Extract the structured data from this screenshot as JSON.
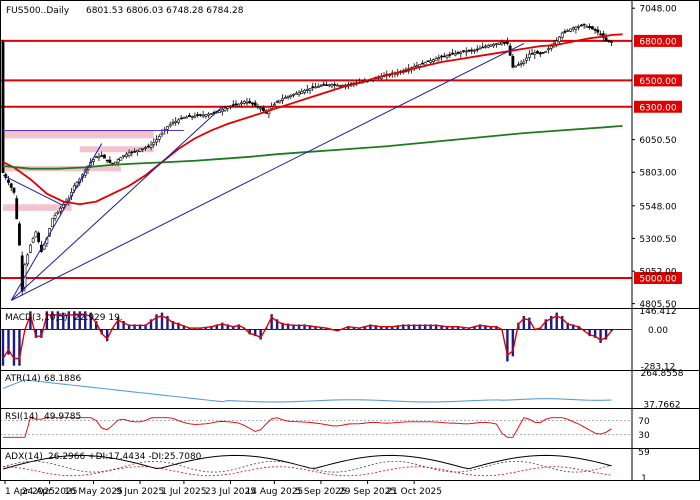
{
  "chart_data": {
    "type": "candlestick",
    "symbol": "FUS500",
    "timeframe": "Daily",
    "header": {
      "title": "FUS500..Daily",
      "ohlc": "6801.53 6806.03 6748.28 6784.28"
    },
    "price_axis": {
      "range": [
        4780,
        7080
      ],
      "ticks": [
        "7048.00",
        "6800.00",
        "6500.00",
        "6300.00",
        "6050.50",
        "5803.00",
        "5548.00",
        "5300.50",
        "5052.00",
        "5000.00",
        "4805.50"
      ]
    },
    "date_axis": {
      "ticks": [
        "1 Apr 2025",
        "24 Apr 2025",
        "16 May 2025",
        "9 Jun 2025",
        "1 Jul 2025",
        "23 Jul 2025",
        "14 Aug 2025",
        "5 Sep 2025",
        "29 Sep 2025",
        "21 Oct 2025"
      ]
    },
    "horizontal_levels": [
      {
        "value": 6800,
        "label": "6800.00",
        "color": "#e00000"
      },
      {
        "value": 6500,
        "label": "6500.00",
        "color": "#e00000"
      },
      {
        "value": 6300,
        "label": "6300.00",
        "color": "#e00000"
      },
      {
        "value": 5000,
        "label": "5000.00",
        "color": "#e00000"
      }
    ],
    "zones": [
      {
        "from_day": 0,
        "to_day": 55,
        "low": 6060,
        "high": 6120,
        "color": "#f2b8c6"
      },
      {
        "from_day": 0,
        "to_day": 43,
        "low": 5810,
        "high": 5850,
        "color": "#f2b8c6"
      },
      {
        "from_day": 0,
        "to_day": 25,
        "low": 5510,
        "high": 5560,
        "color": "#f2b8c6"
      },
      {
        "from_day": 28,
        "to_day": 55,
        "low": 5955,
        "high": 6000,
        "color": "#f2b8c6"
      }
    ],
    "trendlines": [
      {
        "from": [
          3,
          4830
        ],
        "to": [
          190,
          6780
        ],
        "color": "#1a1aaa"
      },
      {
        "from": [
          3,
          4830
        ],
        "to": [
          80,
          6300
        ],
        "color": "#1a1aaa"
      },
      {
        "from": [
          3,
          4830
        ],
        "to": [
          36,
          6020
        ],
        "color": "#1a1aaa"
      },
      {
        "from": [
          0,
          5780
        ],
        "to": [
          22,
          5550
        ],
        "color": "#1a1aaa"
      },
      {
        "from": [
          0,
          6120
        ],
        "to": [
          66,
          6120
        ],
        "color": "#5533cc"
      }
    ],
    "moving_averages": [
      {
        "period": 20,
        "color": "#e00000",
        "points": [
          [
            0,
            5880
          ],
          [
            4,
            5840
          ],
          [
            10,
            5750
          ],
          [
            16,
            5640
          ],
          [
            22,
            5580
          ],
          [
            28,
            5560
          ],
          [
            34,
            5580
          ],
          [
            40,
            5640
          ],
          [
            46,
            5700
          ],
          [
            52,
            5780
          ],
          [
            58,
            5880
          ],
          [
            64,
            5980
          ],
          [
            70,
            6060
          ],
          [
            76,
            6120
          ],
          [
            82,
            6170
          ],
          [
            88,
            6210
          ],
          [
            94,
            6250
          ],
          [
            100,
            6290
          ],
          [
            106,
            6330
          ],
          [
            112,
            6370
          ],
          [
            118,
            6410
          ],
          [
            124,
            6450
          ],
          [
            130,
            6480
          ],
          [
            136,
            6520
          ],
          [
            142,
            6550
          ],
          [
            148,
            6580
          ],
          [
            154,
            6610
          ],
          [
            160,
            6640
          ],
          [
            166,
            6660
          ],
          [
            172,
            6680
          ],
          [
            178,
            6700
          ],
          [
            184,
            6720
          ],
          [
            190,
            6740
          ],
          [
            196,
            6760
          ],
          [
            202,
            6770
          ],
          [
            208,
            6795
          ],
          [
            214,
            6820
          ],
          [
            218,
            6830
          ],
          [
            222,
            6845
          ],
          [
            226,
            6850
          ]
        ]
      },
      {
        "period": 100,
        "color": "#1e7a1e",
        "points": [
          [
            0,
            5850
          ],
          [
            10,
            5830
          ],
          [
            20,
            5830
          ],
          [
            30,
            5840
          ],
          [
            40,
            5860
          ],
          [
            50,
            5870
          ],
          [
            60,
            5880
          ],
          [
            70,
            5890
          ],
          [
            80,
            5905
          ],
          [
            90,
            5920
          ],
          [
            100,
            5940
          ],
          [
            110,
            5955
          ],
          [
            120,
            5970
          ],
          [
            130,
            5985
          ],
          [
            140,
            6000
          ],
          [
            150,
            6020
          ],
          [
            160,
            6040
          ],
          [
            170,
            6060
          ],
          [
            180,
            6080
          ],
          [
            190,
            6100
          ],
          [
            200,
            6115
          ],
          [
            210,
            6130
          ],
          [
            220,
            6145
          ],
          [
            226,
            6155
          ]
        ]
      }
    ],
    "indicators": [
      {
        "name": "MACD",
        "label": "MACD(3,10,5)",
        "values": "22.929 19.",
        "scale_labels": [
          "146.412",
          "0.00",
          "-283.12"
        ],
        "range": [
          -290,
          150
        ]
      },
      {
        "name": "ATR",
        "label": "ATR(14)",
        "values": "68.1886",
        "scale_labels": [
          "264.8558",
          "37.7662"
        ],
        "range": [
          30,
          270
        ]
      },
      {
        "name": "RSI",
        "label": "RSI(14)",
        "values": "49.9785",
        "scale_labels": [
          "70",
          "30"
        ],
        "range": [
          0,
          100
        ]
      },
      {
        "name": "ADX",
        "label": "ADX(14)",
        "values": "26.2966 +DI:17.4434 -DI:25.7080",
        "scale_labels": [
          "59",
          "1"
        ],
        "range": [
          0,
          62
        ]
      }
    ]
  }
}
